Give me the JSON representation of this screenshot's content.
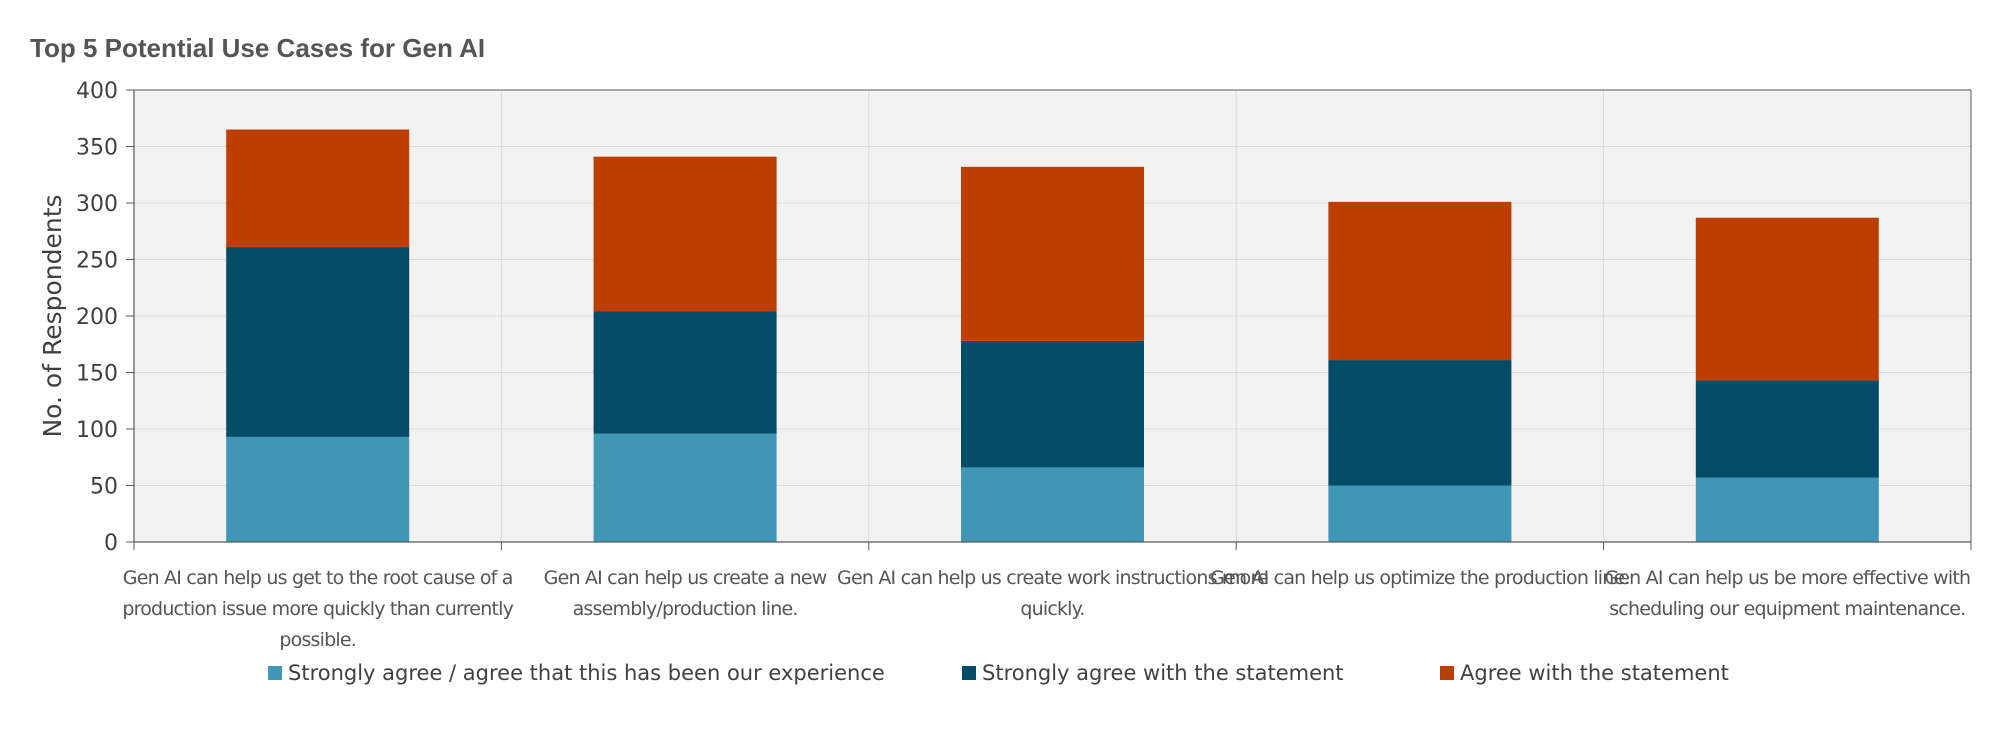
{
  "chart_data": {
    "type": "bar",
    "stacked": true,
    "title": "Top 5 Potential Use Cases for Gen AI",
    "xlabel": "",
    "ylabel": "No. of Respondents",
    "ylim": [
      0,
      400
    ],
    "yticks": [
      0,
      50,
      100,
      150,
      200,
      250,
      300,
      350,
      400
    ],
    "grid": true,
    "legend_position": "bottom",
    "categories": [
      [
        "Gen AI can help us get to the root cause of a",
        "production issue more quickly than currently",
        "possible."
      ],
      [
        "Gen AI can help us create a new",
        "assembly/production line."
      ],
      [
        "Gen AI can help us create work instructions more",
        "quickly."
      ],
      [
        "Gen AI can help us optimize the production line."
      ],
      [
        "Gen AI can help us be more effective with",
        "scheduling our equipment maintenance."
      ]
    ],
    "series": [
      {
        "name": "Strongly agree / agree that this has been our experience",
        "color": "#3f96b5",
        "values": [
          93,
          96,
          66,
          50,
          57
        ]
      },
      {
        "name": "Strongly agree with the statement",
        "color": "#054c68",
        "values": [
          168,
          108,
          112,
          111,
          86
        ]
      },
      {
        "name": "Agree with the statement",
        "color": "#bd3e00",
        "values": [
          104,
          137,
          154,
          140,
          144
        ]
      }
    ],
    "colors": {
      "plot_background": "#f2f2f2",
      "grid": "#d9d9d9",
      "axis": "#595959"
    }
  }
}
